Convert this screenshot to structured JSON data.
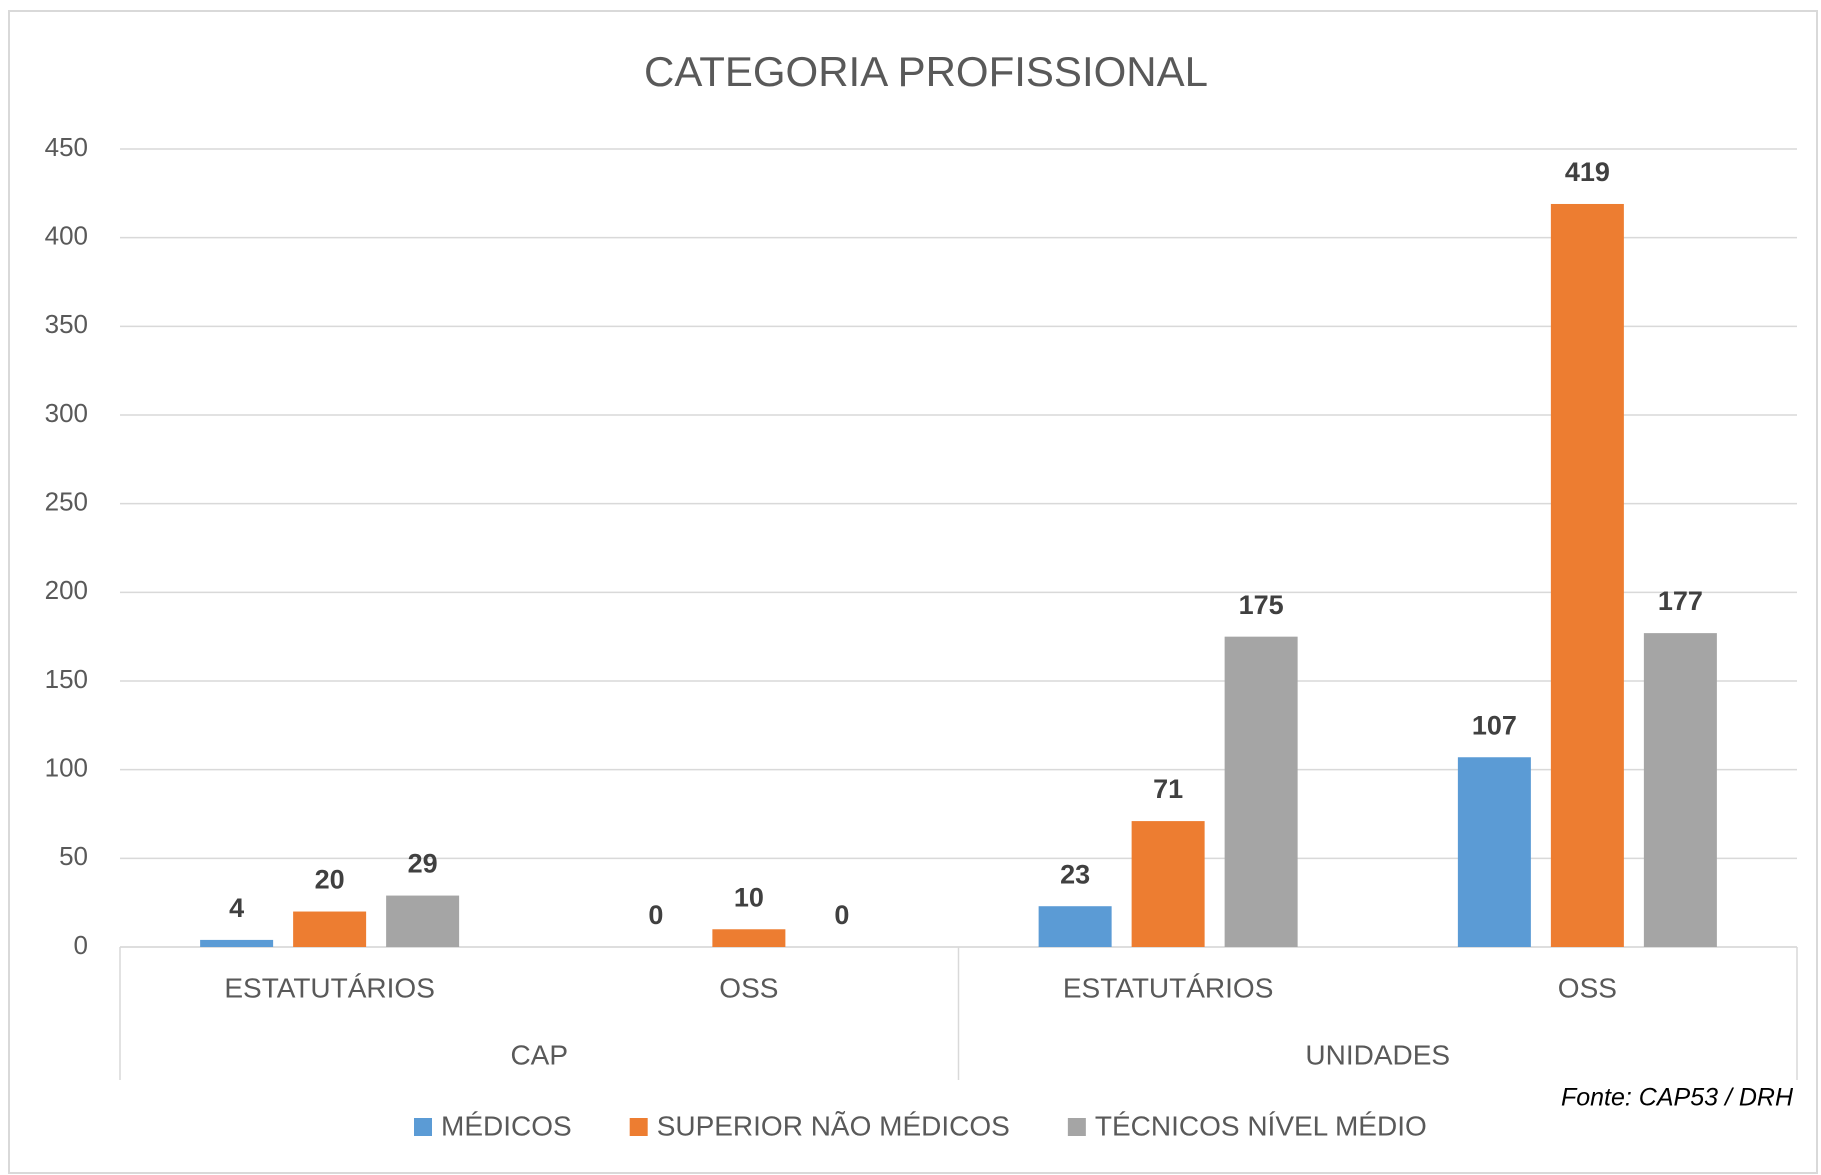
{
  "chart_data": {
    "type": "bar",
    "title": "CATEGORIA PROFISSIONAL",
    "categories": [
      "ESTATUTÁRIOS",
      "OSS",
      "ESTATUTÁRIOS",
      "OSS"
    ],
    "groups": [
      "CAP",
      "UNIDADES"
    ],
    "series": [
      {
        "name": "MÉDICOS",
        "color": "#5b9bd5",
        "values": [
          4,
          0,
          23,
          107
        ]
      },
      {
        "name": "SUPERIOR NÃO MÉDICOS",
        "color": "#ed7d31",
        "values": [
          20,
          10,
          71,
          419
        ]
      },
      {
        "name": "TÉCNICOS NÍVEL MÉDIO",
        "color": "#a5a5a5",
        "values": [
          29,
          0,
          175,
          177
        ]
      }
    ],
    "ylim": [
      0,
      450
    ],
    "yticks": [
      0,
      50,
      100,
      150,
      200,
      250,
      300,
      350,
      400,
      450
    ],
    "grid": true,
    "legend": "bottom",
    "source": "Fonte: CAP53 / DRH"
  }
}
